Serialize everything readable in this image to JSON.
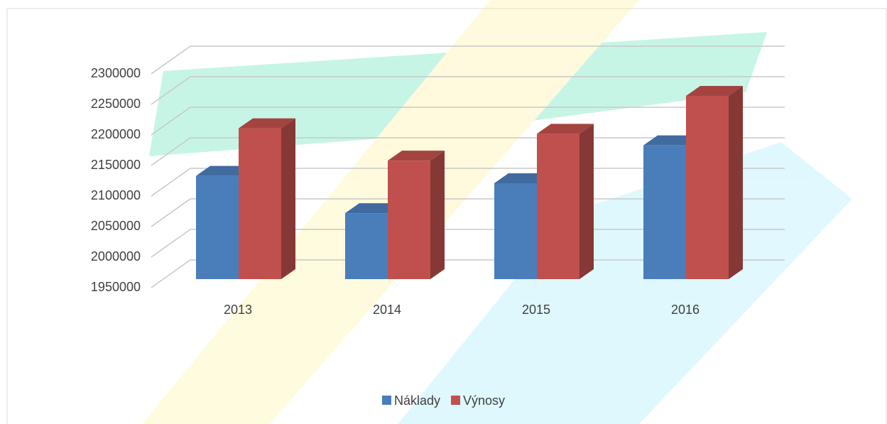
{
  "chart_data": {
    "type": "bar3d",
    "categories": [
      "2013",
      "2014",
      "2015",
      "2016"
    ],
    "series": [
      {
        "name": "Náklady",
        "color": "#4a7ebb",
        "values": [
          2119000,
          2058000,
          2107000,
          2169000
        ]
      },
      {
        "name": "Výnosy",
        "color": "#c0504d",
        "values": [
          2197000,
          2144000,
          2188000,
          2250000
        ]
      }
    ],
    "ylim": [
      1950000,
      2300000
    ],
    "yticks": [
      1950000,
      2000000,
      2050000,
      2100000,
      2150000,
      2200000,
      2250000,
      2300000
    ],
    "grid": true,
    "legend": "bottom"
  }
}
